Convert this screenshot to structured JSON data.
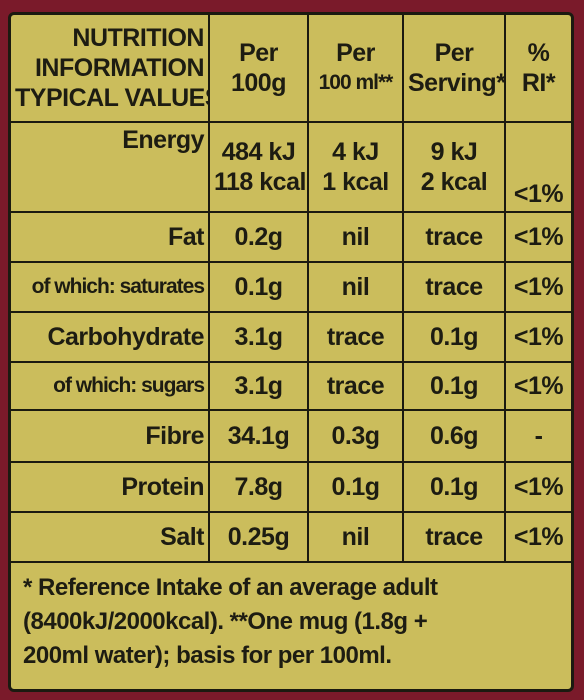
{
  "table": {
    "header": [
      [
        "NUTRITION",
        "INFORMATION",
        "TYPICAL VALUES"
      ],
      [
        "Per",
        "100g"
      ],
      [
        "Per",
        "100 ml**"
      ],
      [
        "Per",
        "Serving**"
      ],
      [
        "%",
        "RI*"
      ]
    ],
    "rows": [
      [
        [
          "Energy"
        ],
        [
          "484 kJ",
          "118 kcal"
        ],
        [
          "4 kJ",
          "1 kcal"
        ],
        [
          "9 kJ",
          "2 kcal"
        ],
        [
          "<1%"
        ]
      ],
      [
        [
          "Fat"
        ],
        [
          "0.2g"
        ],
        [
          "nil"
        ],
        [
          "trace"
        ],
        [
          "<1%"
        ]
      ],
      [
        [
          "of which: saturates"
        ],
        [
          "0.1g"
        ],
        [
          "nil"
        ],
        [
          "trace"
        ],
        [
          "<1%"
        ]
      ],
      [
        [
          "Carbohydrate"
        ],
        [
          "3.1g"
        ],
        [
          "trace"
        ],
        [
          "0.1g"
        ],
        [
          "<1%"
        ]
      ],
      [
        [
          "of which: sugars"
        ],
        [
          "3.1g"
        ],
        [
          "trace"
        ],
        [
          "0.1g"
        ],
        [
          "<1%"
        ]
      ],
      [
        [
          "Fibre"
        ],
        [
          "34.1g"
        ],
        [
          "0.3g"
        ],
        [
          "0.6g"
        ],
        [
          "-"
        ]
      ],
      [
        [
          "Protein"
        ],
        [
          "7.8g"
        ],
        [
          "0.1g"
        ],
        [
          "0.1g"
        ],
        [
          "<1%"
        ]
      ],
      [
        [
          "Salt"
        ],
        [
          "0.25g"
        ],
        [
          "nil"
        ],
        [
          "trace"
        ],
        [
          "<1%"
        ]
      ]
    ],
    "footnote": [
      "* Reference Intake of an average adult",
      "(8400kJ/2000kcal). **One mug (1.8g +",
      "200ml water); basis for per 100ml."
    ]
  }
}
